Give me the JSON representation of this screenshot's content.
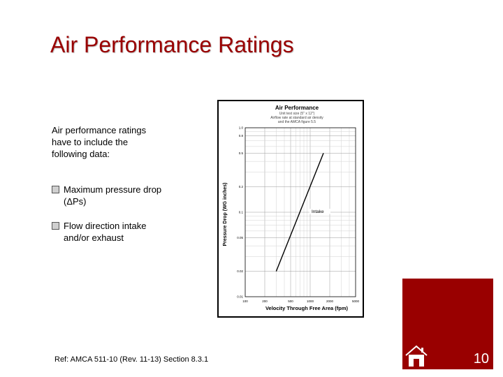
{
  "slide": {
    "title": "Air Performance Ratings",
    "intro": "Air performance ratings have to include the following data:",
    "bullets": [
      {
        "text": "Maximum pressure drop (ΔPs)"
      },
      {
        "text": "Flow direction intake and/or exhaust"
      }
    ],
    "reference": "Ref: AMCA 511-10 (Rev. 11-13) Section 8.3.1",
    "page_number": "10"
  },
  "colors": {
    "accent": "#990000",
    "title_shadow": "#bdbdbd"
  },
  "icons": {
    "bullet": "checkbox-bullet-icon",
    "home": "home-icon"
  },
  "chart_data": {
    "type": "line",
    "title": "Air Performance",
    "subtitle_lines": [
      "Unit test size (5\" x 12\")",
      "Airflow rate at standard air density",
      "and the AMCA figure 5.5"
    ],
    "xlabel": "Velocity Through Free Area (fpm)",
    "ylabel": "Pressure Drop (WG inches)",
    "x_scale": "log",
    "y_scale": "log",
    "xlim": [
      100,
      5000
    ],
    "ylim": [
      0.01,
      1.0
    ],
    "x_ticks": [
      100,
      200,
      500,
      1000,
      2000,
      5000
    ],
    "x_tick_labels": [
      "100",
      "200",
      "500",
      "1000",
      "2000",
      "5000"
    ],
    "y_ticks": [
      0.01,
      0.02,
      0.05,
      0.1,
      0.2,
      0.5,
      0.8,
      1.0
    ],
    "y_tick_labels": [
      "0.01",
      "0.02",
      "0.05",
      "0.1",
      "0.2",
      "0.5",
      "0.8",
      "1.0"
    ],
    "grid": true,
    "series": [
      {
        "name": "Intake",
        "x": [
          300,
          1600
        ],
        "y": [
          0.02,
          0.5
        ],
        "color": "#000000"
      }
    ],
    "annotations": [
      {
        "text": "Intake",
        "x": 1050,
        "y": 0.1
      }
    ]
  }
}
